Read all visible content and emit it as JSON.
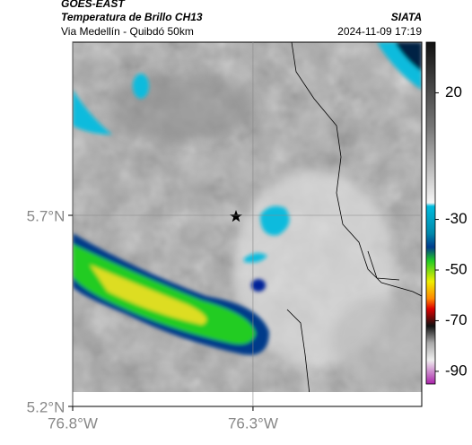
{
  "header": {
    "source": "GOES-EAST",
    "title": "Temperatura de Brillo CH13",
    "subtitle": "Via Medellín - Quibdó 50km",
    "agency": "SIATA",
    "datetime": "2024-11-09 17:19"
  },
  "map": {
    "xlim": [
      -76.8,
      -75.832
    ],
    "ylim": [
      5.2,
      6.153
    ],
    "xticks": [
      {
        "value": -76.8,
        "label": "76.8°W"
      },
      {
        "value": -76.3,
        "label": "76.3°W"
      }
    ],
    "yticks": [
      {
        "value": 5.7,
        "label": "5.7°N"
      },
      {
        "value": 5.2,
        "label": "5.2°N"
      }
    ],
    "grid": true
  },
  "colorbar": {
    "lim": [
      40,
      -95
    ],
    "ticks": [
      20,
      -30,
      -50,
      -70,
      -90
    ]
  }
}
